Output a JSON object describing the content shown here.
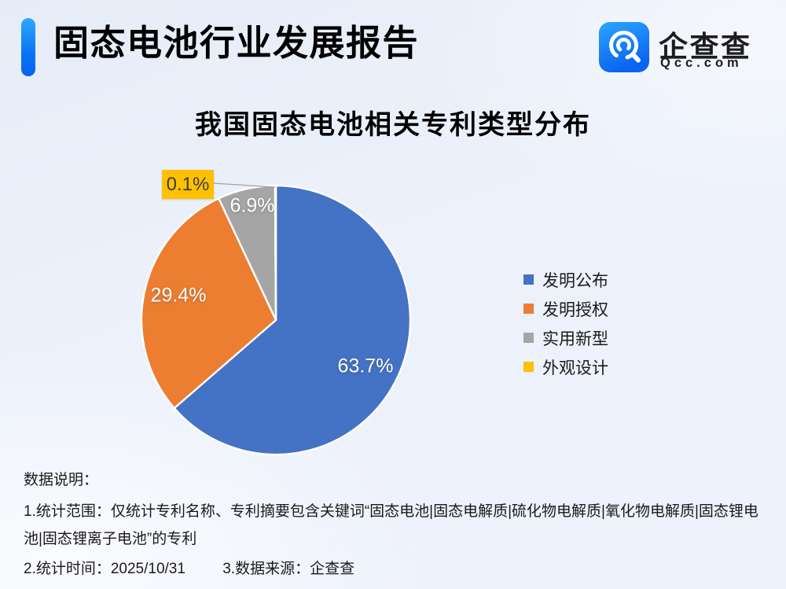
{
  "header": {
    "title": "固态电池行业发展报告",
    "logo": {
      "name": "企查查",
      "domain": "Qcc.com"
    }
  },
  "chart_data": {
    "type": "pie",
    "title": "我国固态电池相关专利类型分布",
    "legend_position": "right",
    "slices": [
      {
        "label": "发明公布",
        "value": 63.7,
        "display": "63.7%",
        "color": "#4472C4"
      },
      {
        "label": "发明授权",
        "value": 29.4,
        "display": "29.4%",
        "color": "#ED7D31"
      },
      {
        "label": "实用新型",
        "value": 6.9,
        "display": "6.9%",
        "color": "#A5A5A5"
      },
      {
        "label": "外观设计",
        "value": 0.1,
        "display": "0.1%",
        "color": "#FFC000"
      }
    ]
  },
  "notes": {
    "heading": "数据说明：",
    "note1": "1.统计范围：仅统计专利名称、专利摘要包含关键词“固态电池|固态电解质|硫化物电解质|氧化物电解质|固态锂电池|固态锂离子电池”的专利",
    "note2": "2.统计时间：2025/10/31",
    "note3": "3.数据来源：企查查"
  }
}
